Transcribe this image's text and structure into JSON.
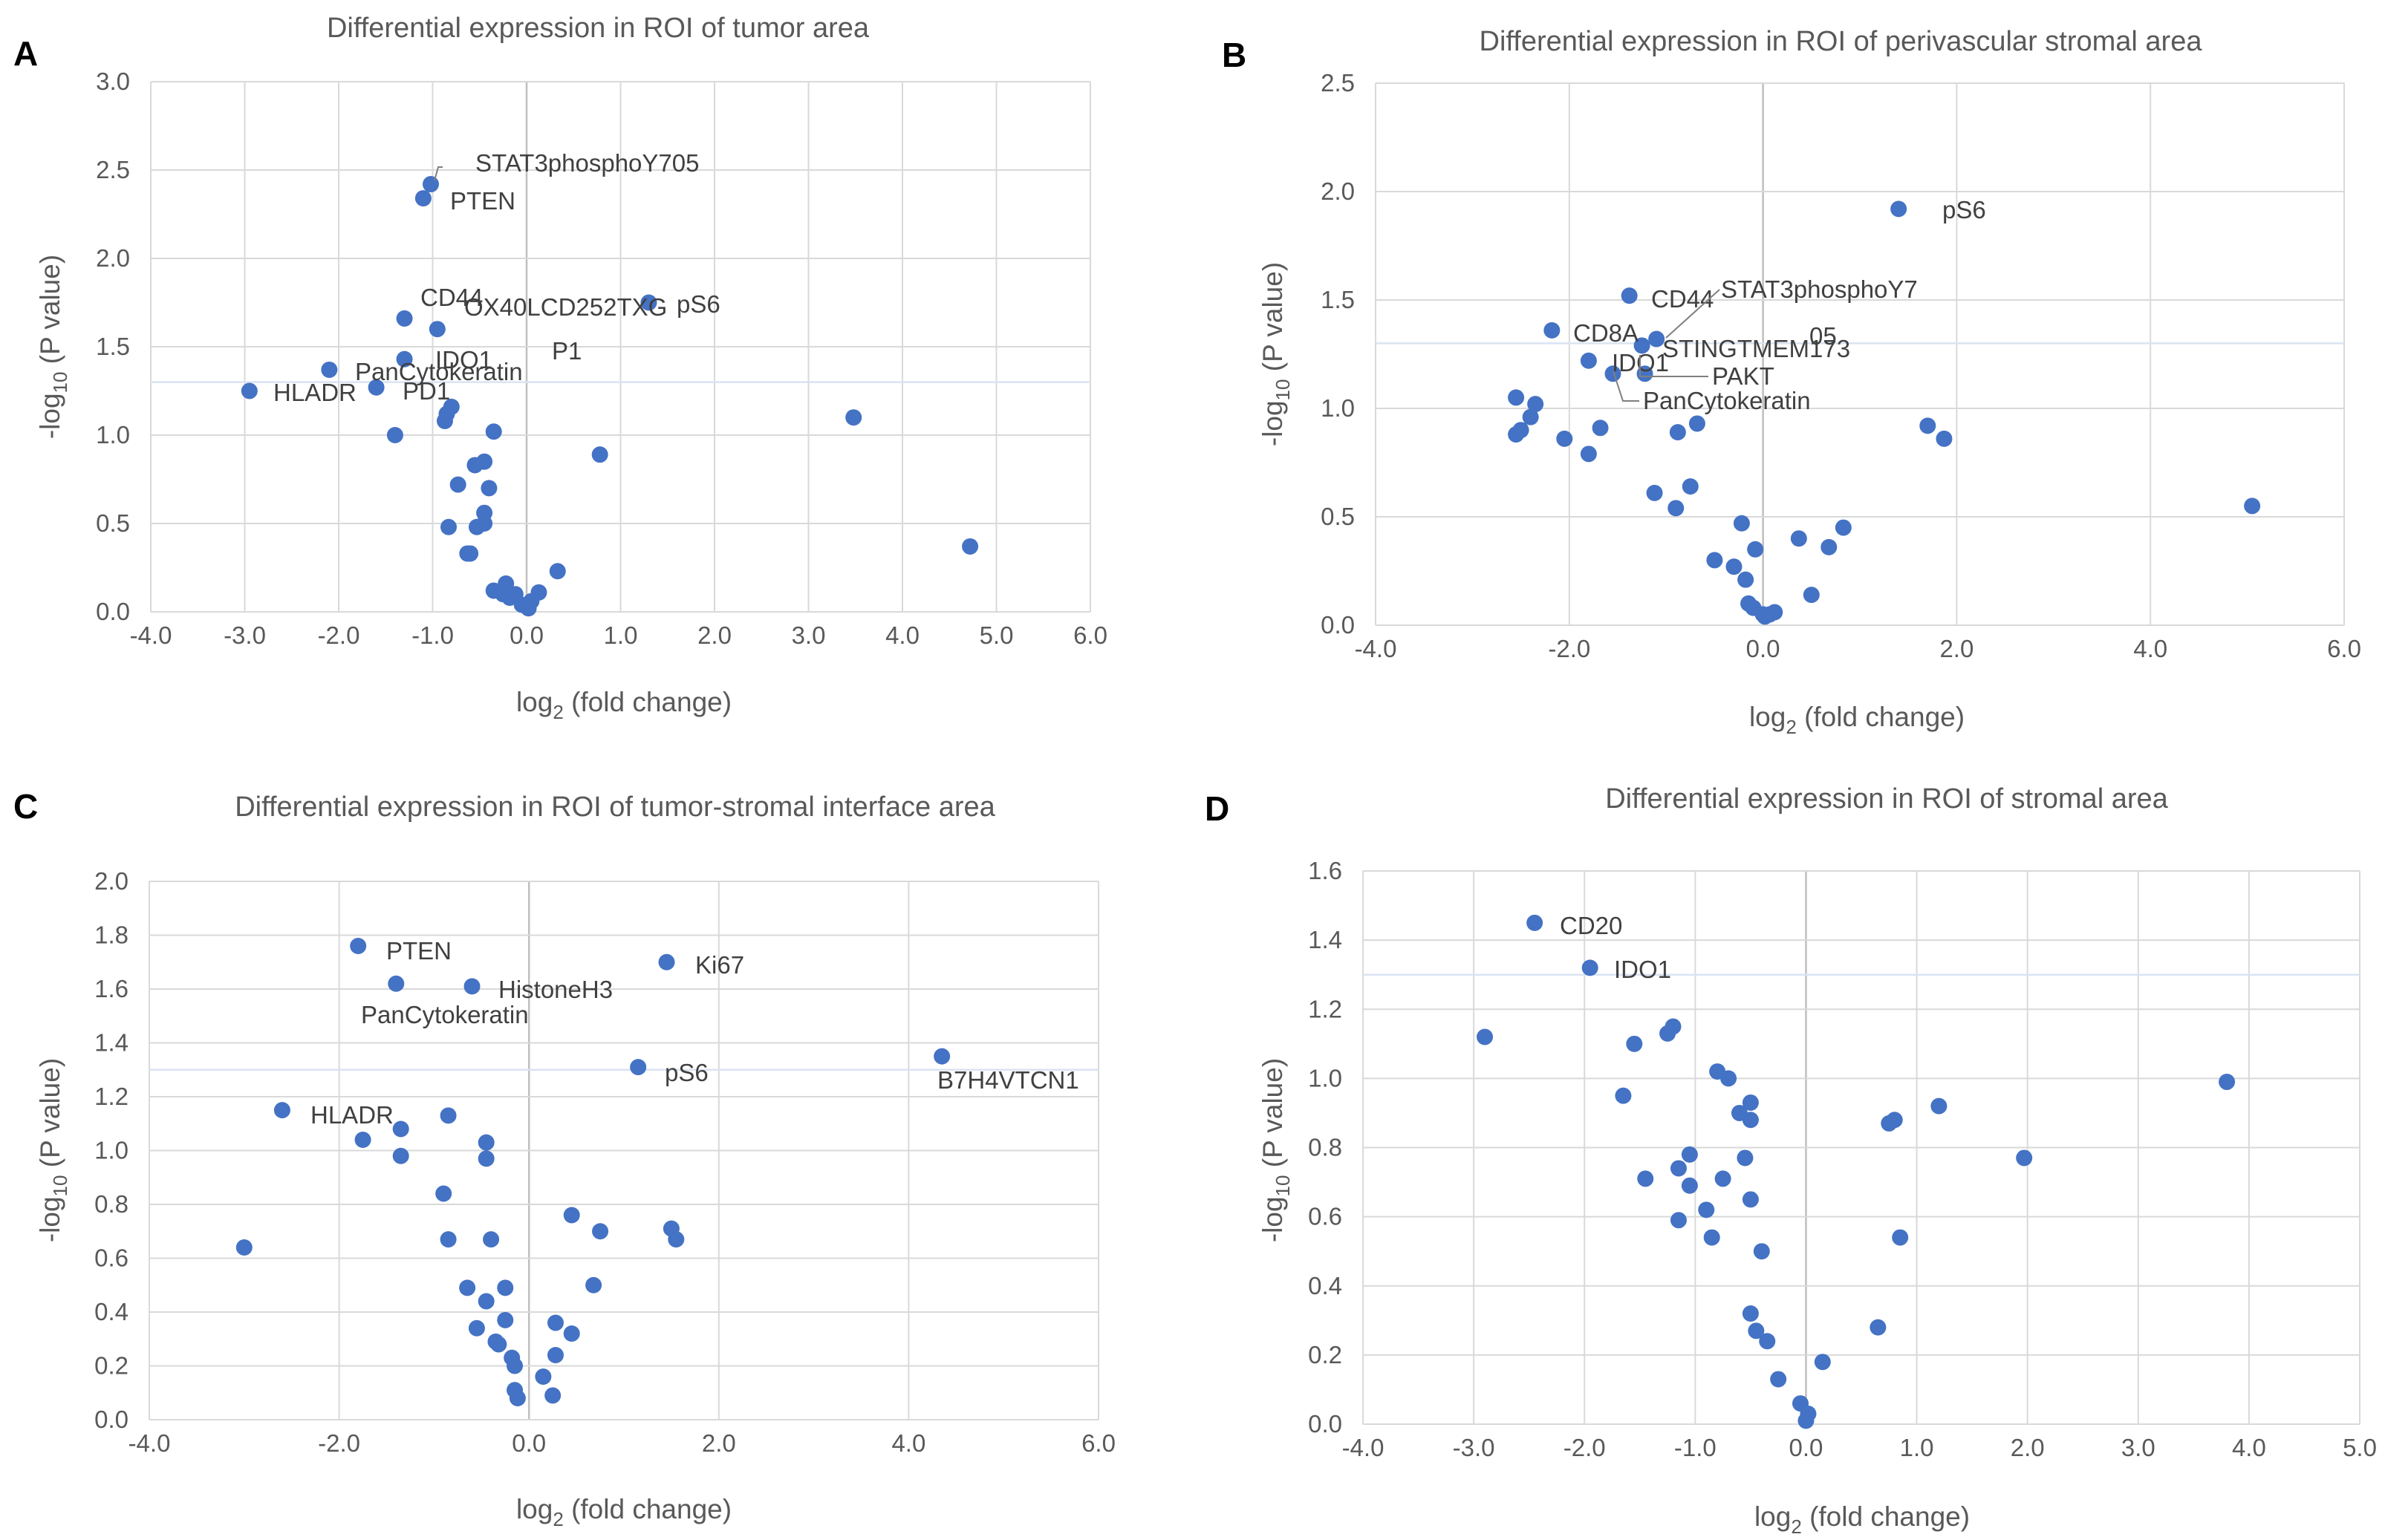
{
  "chart_data": [
    {
      "type": "scatter",
      "panel_label": "A",
      "title": "Differential expression in ROI of tumor area",
      "xlabel": "log",
      "xlabel_sub": "2",
      "xlabel_rest": " (fold change)",
      "ylabel_pre": "-log",
      "ylabel_sub": "10",
      "ylabel_rest": " (P value)",
      "xlim": [
        -4,
        6
      ],
      "ylim": [
        0,
        3
      ],
      "xticks": [
        "-4.0",
        "-3.0",
        "-2.0",
        "-1.0",
        "0.0",
        "1.0",
        "2.0",
        "3.0",
        "4.0",
        "5.0",
        "6.0"
      ],
      "xtick_values": [
        -4,
        -3,
        -2,
        -1,
        0,
        1,
        2,
        3,
        4,
        5,
        6
      ],
      "yticks": [
        "0.0",
        "0.5",
        "1.0",
        "1.5",
        "2.0",
        "2.5",
        "3.0"
      ],
      "ytick_values": [
        0,
        0.5,
        1,
        1.5,
        2,
        2.5,
        3
      ],
      "threshold_y": 1.3,
      "marker_color": "#4472c4",
      "points": [
        [
          -1.02,
          2.42
        ],
        [
          -1.1,
          2.34
        ],
        [
          -1.3,
          1.66
        ],
        [
          -0.95,
          1.6
        ],
        [
          1.3,
          1.75
        ],
        [
          -1.3,
          1.43
        ],
        [
          -2.1,
          1.37
        ],
        [
          -1.6,
          1.27
        ],
        [
          -2.95,
          1.25
        ],
        [
          -0.8,
          1.16
        ],
        [
          -0.85,
          1.12
        ],
        [
          -0.87,
          1.08
        ],
        [
          -1.4,
          1.0
        ],
        [
          -0.35,
          1.02
        ],
        [
          0.78,
          0.89
        ],
        [
          3.48,
          1.1
        ],
        [
          -0.45,
          0.85
        ],
        [
          -0.55,
          0.83
        ],
        [
          -0.73,
          0.72
        ],
        [
          -0.4,
          0.7
        ],
        [
          -0.45,
          0.56
        ],
        [
          -0.45,
          0.5
        ],
        [
          -0.53,
          0.48
        ],
        [
          -0.83,
          0.48
        ],
        [
          -0.6,
          0.33
        ],
        [
          -0.63,
          0.33
        ],
        [
          4.72,
          0.37
        ],
        [
          0.33,
          0.23
        ],
        [
          -0.22,
          0.16
        ],
        [
          -0.35,
          0.12
        ],
        [
          -0.25,
          0.1
        ],
        [
          -0.12,
          0.1
        ],
        [
          -0.18,
          0.08
        ],
        [
          0.13,
          0.11
        ],
        [
          0.05,
          0.06
        ],
        [
          -0.05,
          0.04
        ],
        [
          0.02,
          0.02
        ],
        [
          0.0,
          0.03
        ]
      ],
      "annotations": [
        {
          "text": "STAT3phosphoY705"
        },
        {
          "text": "PTEN"
        },
        {
          "text": "CD44"
        },
        {
          "text": "OX40LCD252TXG"
        },
        {
          "text": "pS6"
        },
        {
          "text": "IDO1"
        },
        {
          "text": "P1"
        },
        {
          "text": "PanCytokeratin"
        },
        {
          "text": "HLADR"
        },
        {
          "text": "PD1"
        }
      ]
    },
    {
      "type": "scatter",
      "panel_label": "B",
      "title": "Differential expression in ROI of perivascular stromal area",
      "xlabel": "log",
      "xlabel_sub": "2",
      "xlabel_rest": " (fold change)",
      "ylabel_pre": "-log",
      "ylabel_sub": "10",
      "ylabel_rest": " (P value)",
      "xlim": [
        -4,
        6
      ],
      "ylim": [
        0,
        2.5
      ],
      "xticks": [
        "-4.0",
        "-2.0",
        "0.0",
        "2.0",
        "4.0",
        "6.0"
      ],
      "xtick_values": [
        -4,
        -2,
        0,
        2,
        4,
        6
      ],
      "yticks": [
        "0.0",
        "0.5",
        "1.0",
        "1.5",
        "2.0",
        "2.5"
      ],
      "ytick_values": [
        0,
        0.5,
        1,
        1.5,
        2,
        2.5
      ],
      "threshold_y": 1.3,
      "marker_color": "#4472c4",
      "points": [
        [
          1.4,
          1.92
        ],
        [
          -1.38,
          1.52
        ],
        [
          -2.18,
          1.36
        ],
        [
          -1.1,
          1.32
        ],
        [
          -1.25,
          1.29
        ],
        [
          -1.8,
          1.22
        ],
        [
          -1.55,
          1.16
        ],
        [
          -1.22,
          1.16
        ],
        [
          -2.55,
          1.05
        ],
        [
          -2.35,
          1.02
        ],
        [
          -2.4,
          0.96
        ],
        [
          -2.5,
          0.9
        ],
        [
          -2.55,
          0.88
        ],
        [
          -1.68,
          0.91
        ],
        [
          -2.05,
          0.86
        ],
        [
          -1.8,
          0.79
        ],
        [
          -0.68,
          0.93
        ],
        [
          -0.88,
          0.89
        ],
        [
          1.7,
          0.92
        ],
        [
          1.87,
          0.86
        ],
        [
          -1.12,
          0.61
        ],
        [
          -0.75,
          0.64
        ],
        [
          -0.9,
          0.54
        ],
        [
          5.05,
          0.55
        ],
        [
          0.83,
          0.45
        ],
        [
          -0.22,
          0.47
        ],
        [
          0.37,
          0.4
        ],
        [
          0.68,
          0.36
        ],
        [
          -0.08,
          0.35
        ],
        [
          -0.5,
          0.3
        ],
        [
          -0.3,
          0.27
        ],
        [
          -0.18,
          0.21
        ],
        [
          0.5,
          0.14
        ],
        [
          -0.15,
          0.1
        ],
        [
          -0.1,
          0.08
        ],
        [
          0.12,
          0.06
        ],
        [
          0.07,
          0.05
        ],
        [
          0.02,
          0.04
        ],
        [
          0.0,
          0.05
        ]
      ],
      "annotations": [
        {
          "text": "pS6"
        },
        {
          "text": "CD44"
        },
        {
          "text": "STAT3phosphoY7"
        },
        {
          "text": "05"
        },
        {
          "text": "CD8A"
        },
        {
          "text": "STINGTMEM173"
        },
        {
          "text": "IDO1"
        },
        {
          "text": "PAKT"
        },
        {
          "text": "PanCytokeratin"
        }
      ]
    },
    {
      "type": "scatter",
      "panel_label": "C",
      "title": "Differential expression in ROI of tumor-stromal interface area",
      "xlabel": "log",
      "xlabel_sub": "2",
      "xlabel_rest": " (fold change)",
      "ylabel_pre": "-log",
      "ylabel_sub": "10",
      "ylabel_rest": " (P value)",
      "xlim": [
        -4,
        6
      ],
      "ylim": [
        0,
        2
      ],
      "xticks": [
        "-4.0",
        "-2.0",
        "0.0",
        "2.0",
        "4.0",
        "6.0"
      ],
      "xtick_values": [
        -4,
        -2,
        0,
        2,
        4,
        6
      ],
      "yticks": [
        "0.0",
        "0.2",
        "0.4",
        "0.6",
        "0.8",
        "1.0",
        "1.2",
        "1.4",
        "1.6",
        "1.8",
        "2.0"
      ],
      "ytick_values": [
        0,
        0.2,
        0.4,
        0.6,
        0.8,
        1.0,
        1.2,
        1.4,
        1.6,
        1.8,
        2.0
      ],
      "threshold_y": 1.3,
      "marker_color": "#4472c4",
      "points": [
        [
          -1.8,
          1.76
        ],
        [
          -1.4,
          1.62
        ],
        [
          -0.6,
          1.61
        ],
        [
          1.45,
          1.7
        ],
        [
          1.15,
          1.31
        ],
        [
          4.35,
          1.35
        ],
        [
          -2.6,
          1.15
        ],
        [
          -1.75,
          1.04
        ],
        [
          -1.35,
          1.08
        ],
        [
          -0.85,
          1.13
        ],
        [
          -0.45,
          1.03
        ],
        [
          -0.45,
          0.97
        ],
        [
          -1.35,
          0.98
        ],
        [
          -0.9,
          0.84
        ],
        [
          -3.0,
          0.64
        ],
        [
          0.45,
          0.76
        ],
        [
          0.75,
          0.7
        ],
        [
          1.5,
          0.71
        ],
        [
          1.55,
          0.67
        ],
        [
          -0.85,
          0.67
        ],
        [
          -0.4,
          0.67
        ],
        [
          -0.65,
          0.49
        ],
        [
          -0.25,
          0.49
        ],
        [
          0.68,
          0.5
        ],
        [
          -0.45,
          0.44
        ],
        [
          -0.25,
          0.37
        ],
        [
          -0.55,
          0.34
        ],
        [
          -0.35,
          0.29
        ],
        [
          -0.32,
          0.28
        ],
        [
          0.28,
          0.36
        ],
        [
          0.45,
          0.32
        ],
        [
          -0.18,
          0.23
        ],
        [
          -0.15,
          0.2
        ],
        [
          0.28,
          0.24
        ],
        [
          0.15,
          0.16
        ],
        [
          -0.15,
          0.11
        ],
        [
          -0.12,
          0.08
        ],
        [
          0.25,
          0.09
        ]
      ],
      "annotations": [
        {
          "text": "PTEN"
        },
        {
          "text": "Ki67"
        },
        {
          "text": "HistoneH3"
        },
        {
          "text": "PanCytokeratin"
        },
        {
          "text": "pS6"
        },
        {
          "text": "B7H4VTCN1"
        },
        {
          "text": "HLADR"
        }
      ]
    },
    {
      "type": "scatter",
      "panel_label": "D",
      "title": "Differential expression in ROI of stromal area",
      "xlabel": "log",
      "xlabel_sub": "2",
      "xlabel_rest": " (fold change)",
      "ylabel_pre": "-log",
      "ylabel_sub": "10",
      "ylabel_rest": " (P value)",
      "xlim": [
        -4,
        5
      ],
      "ylim": [
        0,
        1.6
      ],
      "xticks": [
        "-4.0",
        "-3.0",
        "-2.0",
        "-1.0",
        "0.0",
        "1.0",
        "2.0",
        "3.0",
        "4.0",
        "5.0"
      ],
      "xtick_values": [
        -4,
        -3,
        -2,
        -1,
        0,
        1,
        2,
        3,
        4,
        5
      ],
      "yticks": [
        "0.0",
        "0.2",
        "0.4",
        "0.6",
        "0.8",
        "1.0",
        "1.2",
        "1.4",
        "1.6"
      ],
      "ytick_values": [
        0,
        0.2,
        0.4,
        0.6,
        0.8,
        1.0,
        1.2,
        1.4,
        1.6
      ],
      "threshold_y": 1.3,
      "marker_color": "#4472c4",
      "points": [
        [
          -2.45,
          1.45
        ],
        [
          -1.95,
          1.32
        ],
        [
          -2.9,
          1.12
        ],
        [
          -1.55,
          1.1
        ],
        [
          -1.2,
          1.15
        ],
        [
          -1.25,
          1.13
        ],
        [
          -1.65,
          0.95
        ],
        [
          -0.8,
          1.02
        ],
        [
          -0.7,
          1.0
        ],
        [
          -0.5,
          0.93
        ],
        [
          -0.6,
          0.9
        ],
        [
          -0.5,
          0.88
        ],
        [
          3.8,
          0.99
        ],
        [
          1.2,
          0.92
        ],
        [
          0.8,
          0.88
        ],
        [
          0.75,
          0.87
        ],
        [
          1.97,
          0.77
        ],
        [
          -1.05,
          0.78
        ],
        [
          -1.15,
          0.74
        ],
        [
          -0.55,
          0.77
        ],
        [
          -1.45,
          0.71
        ],
        [
          -1.05,
          0.69
        ],
        [
          -0.75,
          0.71
        ],
        [
          -0.9,
          0.62
        ],
        [
          -0.5,
          0.65
        ],
        [
          -1.15,
          0.59
        ],
        [
          -0.85,
          0.54
        ],
        [
          -0.4,
          0.5
        ],
        [
          0.85,
          0.54
        ],
        [
          0.65,
          0.28
        ],
        [
          -0.5,
          0.32
        ],
        [
          -0.45,
          0.27
        ],
        [
          -0.35,
          0.24
        ],
        [
          -0.25,
          0.13
        ],
        [
          0.15,
          0.18
        ],
        [
          -0.05,
          0.06
        ],
        [
          0.02,
          0.03
        ],
        [
          0.0,
          0.01
        ]
      ],
      "annotations": [
        {
          "text": "CD20"
        },
        {
          "text": "IDO1"
        }
      ]
    }
  ]
}
